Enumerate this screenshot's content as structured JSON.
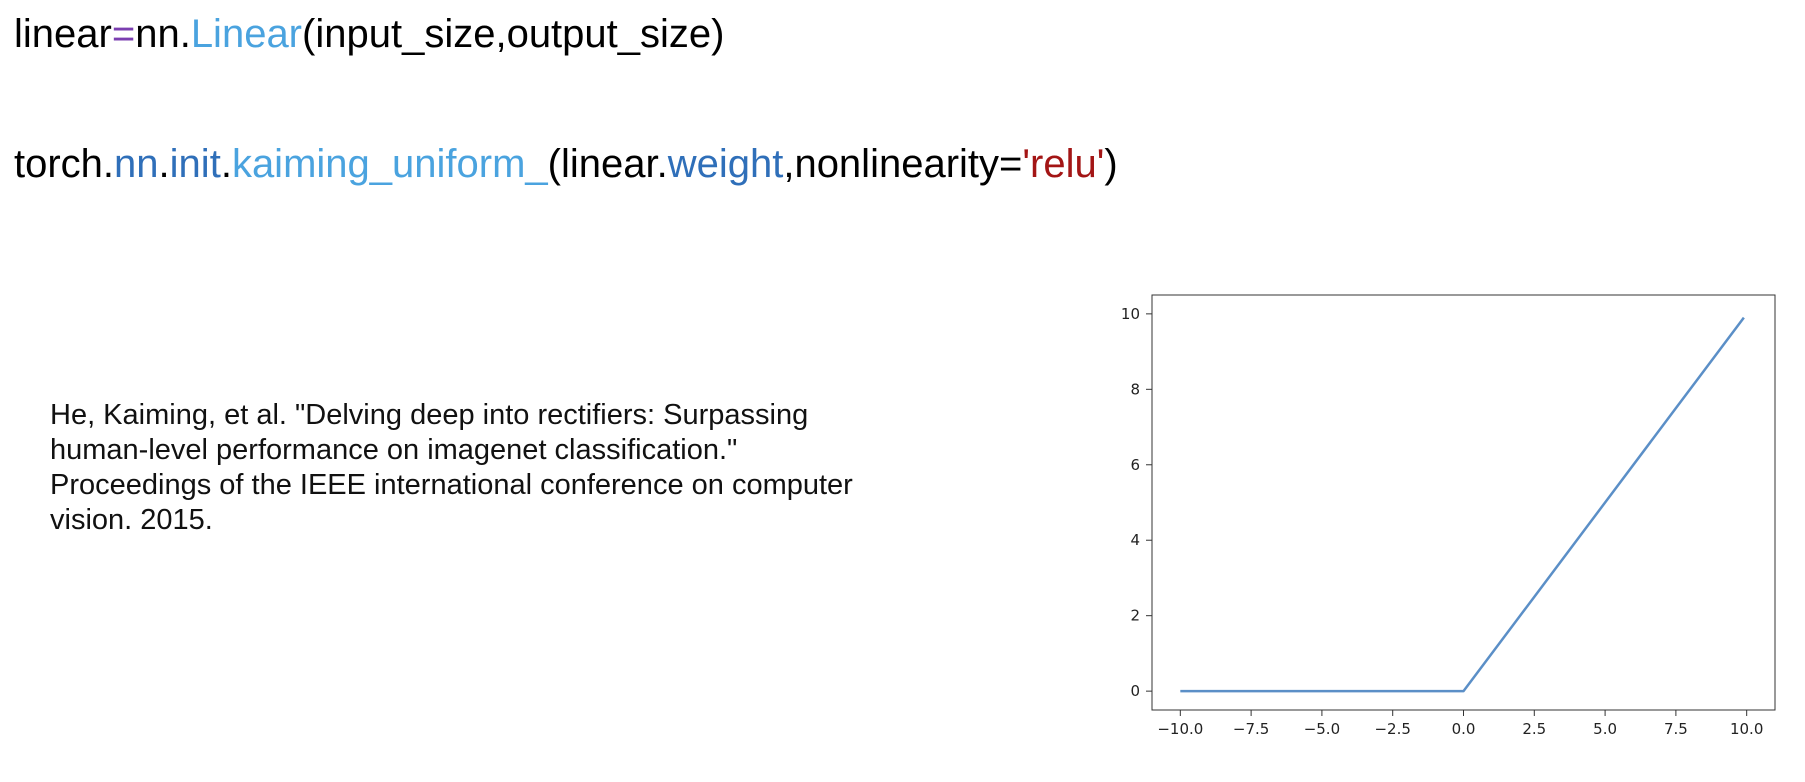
{
  "code": {
    "line1": [
      {
        "text": "linear",
        "type": "plain"
      },
      {
        "text": "=",
        "type": "op"
      },
      {
        "text": "nn.",
        "type": "plain"
      },
      {
        "text": "Linear",
        "type": "class"
      },
      {
        "text": "(input_size,output_size)",
        "type": "plain"
      }
    ],
    "line2": [
      {
        "text": "torch.",
        "type": "plain"
      },
      {
        "text": "nn",
        "type": "module"
      },
      {
        "text": ".",
        "type": "plain"
      },
      {
        "text": "init",
        "type": "module"
      },
      {
        "text": ".",
        "type": "plain"
      },
      {
        "text": "kaiming_uniform_",
        "type": "func"
      },
      {
        "text": "(linear.",
        "type": "plain"
      },
      {
        "text": "weight",
        "type": "attr"
      },
      {
        "text": ",nonlinearity=",
        "type": "plain"
      },
      {
        "text": "'relu'",
        "type": "string"
      },
      {
        "text": ")",
        "type": "plain"
      }
    ]
  },
  "citation": {
    "lines": [
      "He, Kaiming, et al. \"Delving deep into rectifiers: Surpassing",
      "human-level performance on imagenet classification.\"",
      "Proceedings of the IEEE international conference on computer",
      "vision. 2015."
    ]
  },
  "colors": {
    "plain": "#000000",
    "op": "#7b3fb0",
    "class": "#4aa3df",
    "module": "#2f6fb9",
    "func": "#4aa3df",
    "attr": "#2f6fb9",
    "string": "#a31515",
    "line": "#5b8fc7"
  },
  "chart_data": {
    "type": "line",
    "title": "",
    "xlabel": "",
    "ylabel": "",
    "xlim": [
      -11,
      11
    ],
    "ylim": [
      -0.5,
      10.5
    ],
    "grid": false,
    "x_ticks": [
      -10.0,
      -7.5,
      -5.0,
      -2.5,
      0.0,
      2.5,
      5.0,
      7.5,
      10.0
    ],
    "x_tick_labels": [
      "−10.0",
      "−7.5",
      "−5.0",
      "−2.5",
      "0.0",
      "2.5",
      "5.0",
      "7.5",
      "10.0"
    ],
    "y_ticks": [
      0,
      2,
      4,
      6,
      8,
      10
    ],
    "y_tick_labels": [
      "0",
      "2",
      "4",
      "6",
      "8",
      "10"
    ],
    "series": [
      {
        "x": [
          -10.0,
          -7.5,
          -5.0,
          -2.5,
          0.0,
          2.5,
          5.0,
          7.5,
          9.9
        ],
        "y": [
          0,
          0,
          0,
          0,
          0,
          2.5,
          5.0,
          7.5,
          9.9
        ]
      }
    ]
  }
}
